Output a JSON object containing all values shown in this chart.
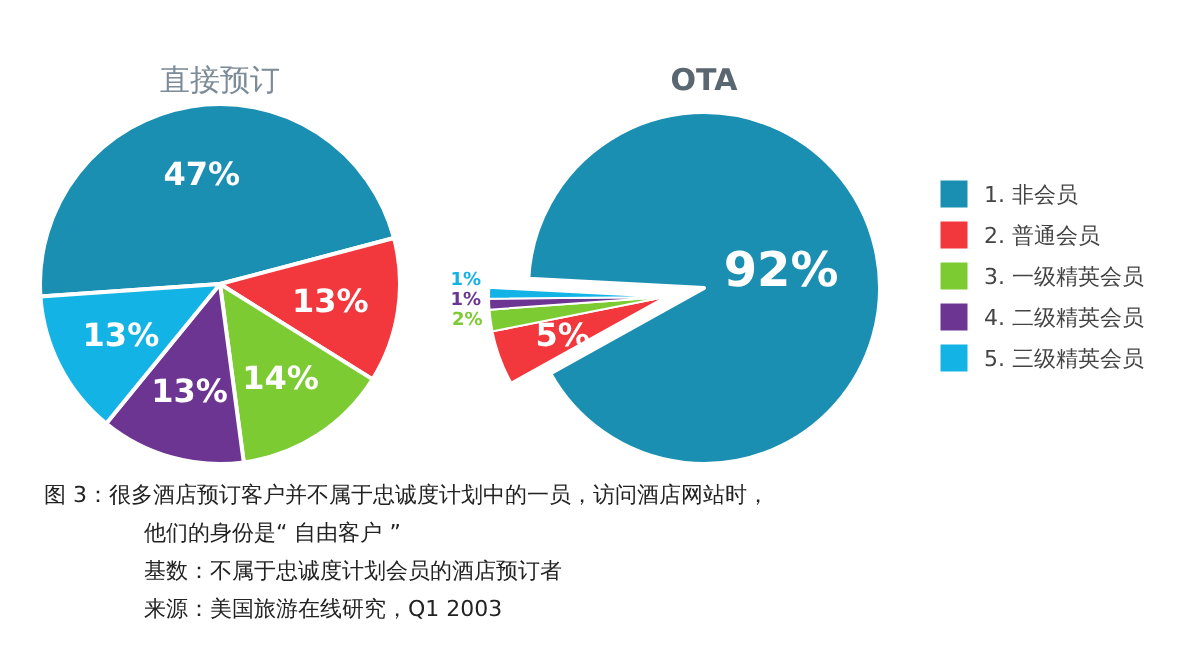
{
  "chart_data": [
    {
      "type": "pie",
      "title": "直接预订",
      "categories": [
        null,
        null,
        null,
        null,
        null
      ],
      "values": [
        47,
        13,
        14,
        13,
        13
      ],
      "colors": [
        "#1a8fb2",
        "#f2373d",
        "#7ccb32",
        "#6c3592",
        "#14b3e6"
      ],
      "value_labels": [
        "47%",
        "13%",
        "14%",
        "13%",
        "13%"
      ]
    },
    {
      "type": "pie",
      "title": "OTA",
      "categories": [
        "1. 非会员",
        "2. 普通会员",
        "3. 一级精英会员",
        "4. 二级精英会员",
        "5. 三级精英会员"
      ],
      "values": [
        92,
        5,
        2,
        1,
        1
      ],
      "colors": [
        "#1a8fb2",
        "#f2373d",
        "#7ccb32",
        "#6c3592",
        "#14b3e6"
      ],
      "value_labels": [
        "92%",
        "5%",
        "2%",
        "1%",
        "1%"
      ],
      "legend": "right",
      "annotations": [
        "图 3：很多酒店预订客户并不属于忠诚度计划中的一员，访问酒店网站时，他们的身份是“ 自由客户 ”",
        "基数：不属于忠诚度计划会员的酒店预订者",
        "来源：美国旅游在线研究，Q1 2003"
      ]
    }
  ]
}
